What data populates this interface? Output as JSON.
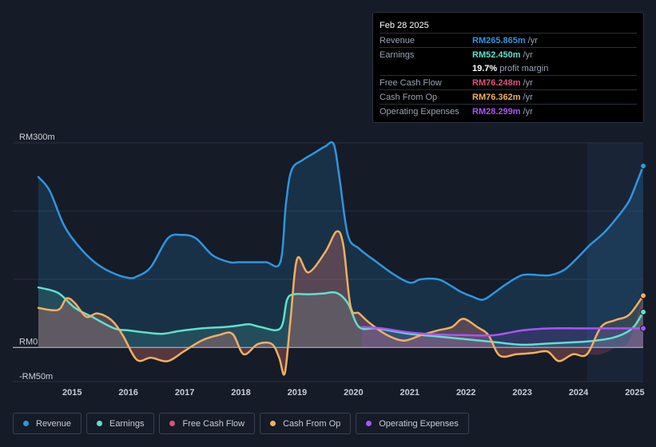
{
  "tooltip": {
    "date": "Feb 28 2025",
    "rows": [
      {
        "label": "Revenue",
        "value": "RM265.865m",
        "unit": "/yr",
        "color": "#2f95e0"
      },
      {
        "label": "Earnings",
        "value": "RM52.450m",
        "unit": "/yr",
        "color": "#5fe0cc"
      },
      {
        "label": "",
        "value": "19.7%",
        "unit": "profit margin",
        "color": "#ffffff"
      },
      {
        "label": "Free Cash Flow",
        "value": "RM76.248m",
        "unit": "/yr",
        "color": "#e0507f"
      },
      {
        "label": "Cash From Op",
        "value": "RM76.362m",
        "unit": "/yr",
        "color": "#f0b060"
      },
      {
        "label": "Operating Expenses",
        "value": "RM28.299m",
        "unit": "/yr",
        "color": "#a855f7"
      }
    ]
  },
  "legend": [
    {
      "label": "Revenue",
      "color": "#2f95e0"
    },
    {
      "label": "Earnings",
      "color": "#5fe0cc"
    },
    {
      "label": "Free Cash Flow",
      "color": "#e0507f"
    },
    {
      "label": "Cash From Op",
      "color": "#f0b060"
    },
    {
      "label": "Operating Expenses",
      "color": "#a855f7"
    }
  ],
  "chart_data": {
    "type": "area",
    "title": "",
    "y_axis_labels": [
      {
        "text": "RM300m",
        "value": 300
      },
      {
        "text": "RM0",
        "value": 0
      },
      {
        "text": "-RM50m",
        "value": -50
      }
    ],
    "ylim": [
      -50,
      300
    ],
    "xlim": [
      2014.4,
      2025.15
    ],
    "x_ticks": [
      2015,
      2016,
      2017,
      2018,
      2019,
      2020,
      2021,
      2022,
      2023,
      2024,
      2025
    ],
    "x_tick_labels": [
      "2015",
      "2016",
      "2017",
      "2018",
      "2019",
      "2020",
      "2021",
      "2022",
      "2023",
      "2024",
      "2025"
    ],
    "forecast_start": 2024.15,
    "series": [
      {
        "name": "Revenue",
        "color": "#2f95e0",
        "x": [
          2014.4,
          2014.6,
          2014.85,
          2015.1,
          2015.4,
          2015.7,
          2016.0,
          2016.15,
          2016.4,
          2016.7,
          2016.95,
          2017.2,
          2017.5,
          2017.8,
          2017.95,
          2018.2,
          2018.45,
          2018.7,
          2018.8,
          2018.9,
          2019.1,
          2019.3,
          2019.5,
          2019.65,
          2019.75,
          2019.9,
          2020.1,
          2020.4,
          2020.7,
          2021.0,
          2021.2,
          2021.5,
          2021.7,
          2021.9,
          2022.1,
          2022.3,
          2022.5,
          2022.7,
          2023.0,
          2023.3,
          2023.5,
          2023.75,
          2024.0,
          2024.2,
          2024.45,
          2024.7,
          2024.9,
          2025.05,
          2025.15
        ],
        "y": [
          250,
          230,
          180,
          150,
          125,
          110,
          102,
          104,
          118,
          160,
          165,
          160,
          135,
          125,
          125,
          125,
          125,
          125,
          210,
          260,
          275,
          285,
          295,
          298,
          250,
          165,
          145,
          126,
          108,
          95,
          100,
          100,
          92,
          82,
          75,
          70,
          80,
          92,
          106,
          106,
          106,
          114,
          133,
          150,
          168,
          192,
          215,
          245,
          266
        ]
      },
      {
        "name": "Earnings",
        "color": "#5fe0cc",
        "x": [
          2014.4,
          2014.75,
          2015.05,
          2015.35,
          2015.75,
          2016.0,
          2016.3,
          2016.6,
          2016.9,
          2017.3,
          2017.7,
          2017.95,
          2018.15,
          2018.35,
          2018.7,
          2018.82,
          2018.95,
          2019.2,
          2019.45,
          2019.7,
          2019.9,
          2020.1,
          2020.4,
          2020.7,
          2021.0,
          2021.5,
          2022.0,
          2022.5,
          2023.0,
          2023.5,
          2024.0,
          2024.3,
          2024.6,
          2024.85,
          2025.0,
          2025.15
        ],
        "y": [
          88,
          80,
          58,
          45,
          28,
          25,
          22,
          20,
          24,
          28,
          30,
          32,
          34,
          30,
          28,
          70,
          78,
          78,
          79,
          80,
          65,
          30,
          28,
          24,
          20,
          16,
          12,
          8,
          4,
          6,
          8,
          10,
          14,
          22,
          32,
          52
        ]
      },
      {
        "name": "Free Cash Flow",
        "color": "#e0507f",
        "x": [
          2014.4,
          2014.75,
          2014.9,
          2015.05,
          2015.25,
          2015.45,
          2015.7,
          2015.9,
          2016.15,
          2016.4,
          2016.7,
          2017.0,
          2017.3,
          2017.6,
          2017.85,
          2018.05,
          2018.3,
          2018.55,
          2018.68,
          2018.78,
          2018.88,
          2019.0,
          2019.2,
          2019.5,
          2019.7,
          2019.82,
          2019.95,
          2020.1,
          2020.3,
          2020.6,
          2020.9,
          2021.2,
          2021.5,
          2021.75,
          2021.95,
          2022.2,
          2022.4,
          2022.6,
          2022.9,
          2023.2,
          2023.45,
          2023.65,
          2023.9,
          2024.15,
          2024.4,
          2024.65,
          2024.9,
          2025.15
        ],
        "y": [
          58,
          55,
          72,
          65,
          45,
          50,
          40,
          18,
          -18,
          -15,
          -20,
          -5,
          10,
          18,
          20,
          -10,
          5,
          5,
          -15,
          -38,
          40,
          130,
          110,
          140,
          170,
          150,
          60,
          50,
          35,
          18,
          10,
          18,
          25,
          30,
          42,
          30,
          18,
          -12,
          -10,
          -8,
          -6,
          -20,
          -10,
          -10,
          -10,
          0,
          10,
          76
        ]
      },
      {
        "name": "Cash From Op",
        "color": "#f0b060",
        "x": [
          2014.4,
          2014.75,
          2014.9,
          2015.05,
          2015.25,
          2015.45,
          2015.7,
          2015.9,
          2016.15,
          2016.4,
          2016.7,
          2017.0,
          2017.3,
          2017.6,
          2017.85,
          2018.05,
          2018.3,
          2018.55,
          2018.68,
          2018.78,
          2018.88,
          2019.0,
          2019.2,
          2019.5,
          2019.7,
          2019.82,
          2019.95,
          2020.1,
          2020.3,
          2020.6,
          2020.9,
          2021.2,
          2021.5,
          2021.75,
          2021.95,
          2022.2,
          2022.4,
          2022.6,
          2022.9,
          2023.2,
          2023.45,
          2023.65,
          2023.9,
          2024.15,
          2024.4,
          2024.65,
          2024.9,
          2025.15
        ],
        "y": [
          58,
          55,
          72,
          65,
          45,
          50,
          40,
          18,
          -18,
          -15,
          -20,
          -5,
          10,
          18,
          20,
          -10,
          5,
          5,
          -15,
          -38,
          40,
          130,
          110,
          140,
          170,
          150,
          60,
          50,
          35,
          18,
          10,
          18,
          25,
          30,
          42,
          30,
          18,
          -12,
          -10,
          -8,
          -6,
          -20,
          -10,
          -10,
          30,
          40,
          48,
          76
        ]
      },
      {
        "name": "Operating Expenses",
        "color": "#a855f7",
        "x": [
          2020.15,
          2020.5,
          2021.0,
          2021.5,
          2022.0,
          2022.5,
          2023.0,
          2023.5,
          2024.0,
          2024.5,
          2025.15
        ],
        "y": [
          30,
          28,
          22,
          19,
          18,
          18,
          25,
          28,
          28,
          28,
          28
        ]
      }
    ]
  }
}
